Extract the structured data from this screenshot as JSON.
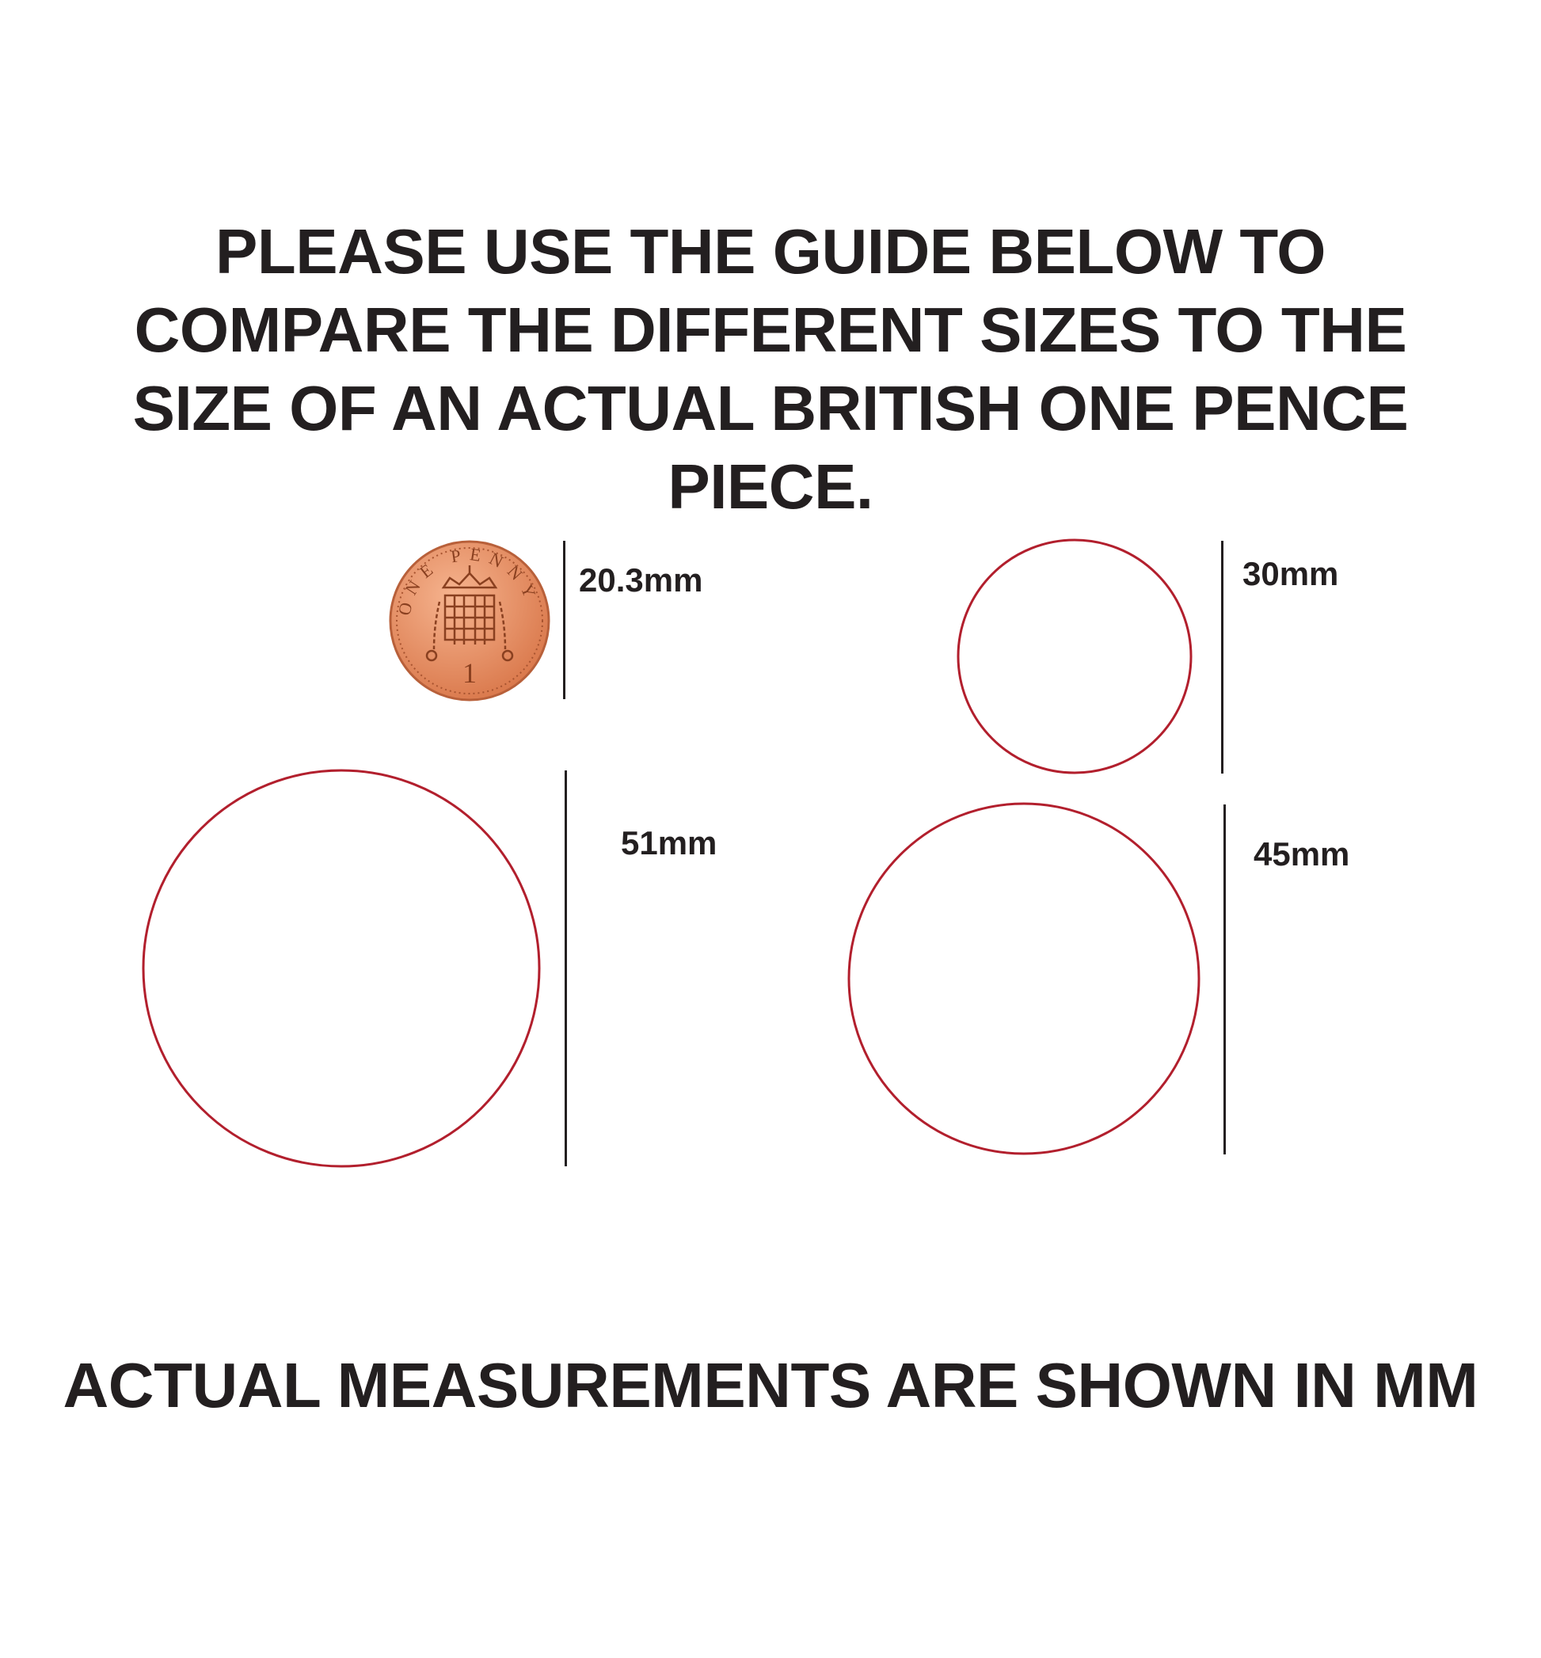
{
  "heading": {
    "lines": [
      "PLEASE USE THE GUIDE BELOW TO",
      "COMPARE THE DIFFERENT SIZES TO THE",
      "SIZE OF AN ACTUAL BRITISH ONE PENCE",
      "PIECE."
    ]
  },
  "coin": {
    "label": "20.3mm",
    "inscription": "ONE PENNY",
    "numeral": "1",
    "color": "#e8946a"
  },
  "circles": [
    {
      "label": "30mm",
      "diameter_mm": 30
    },
    {
      "label": "51mm",
      "diameter_mm": 51
    },
    {
      "label": "45mm",
      "diameter_mm": 45
    }
  ],
  "circle_color": "#b21f2d",
  "footer": "ACTUAL MEASUREMENTS ARE SHOWN IN MM"
}
